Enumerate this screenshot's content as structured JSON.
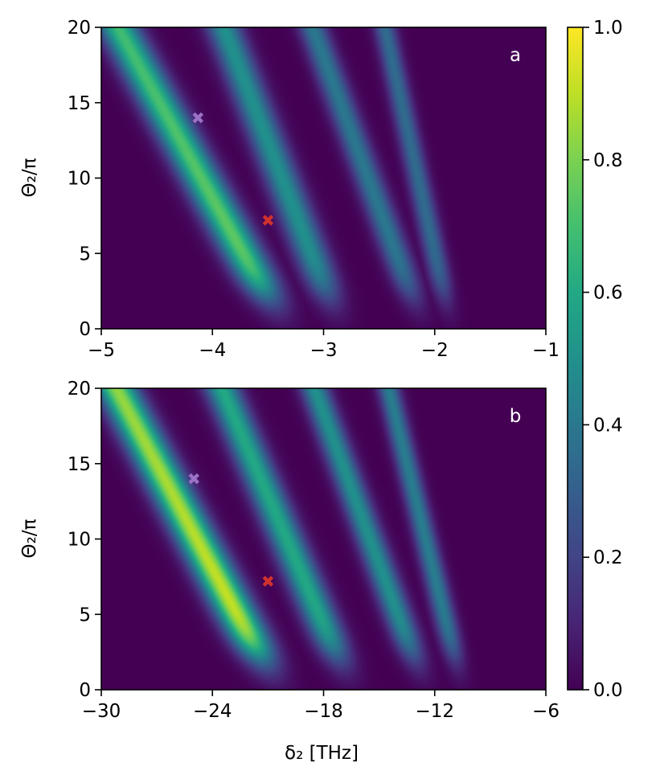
{
  "chart_data": [
    {
      "type": "heatmap",
      "panel_label": "a",
      "xlabel": "",
      "ylabel": "Θ₂/π",
      "xlim": [
        -5,
        -1
      ],
      "ylim": [
        0,
        20
      ],
      "xticks": [
        -5,
        -4,
        -3,
        -2,
        -1
      ],
      "yticks": [
        0,
        5,
        10,
        15,
        20
      ],
      "xtick_labels": [
        "−5",
        "−4",
        "−3",
        "−2",
        "−1"
      ],
      "ytick_labels": [
        "0",
        "5",
        "10",
        "15",
        "20"
      ],
      "peak_value": 0.78,
      "markers": [
        {
          "x": -4.13,
          "y": 14.0,
          "color": "#9b72c6",
          "symbol": "X"
        },
        {
          "x": -3.5,
          "y": 7.2,
          "color": "#d0322d",
          "symbol": "X"
        }
      ],
      "ridges": [
        {
          "x_at_top": -4.85,
          "x_at_bottom": -3.35,
          "peak": 0.78
        },
        {
          "x_at_top": -3.9,
          "x_at_bottom": -2.85,
          "peak": 0.5
        },
        {
          "x_at_top": -3.1,
          "x_at_bottom": -2.1,
          "peak": 0.4
        },
        {
          "x_at_top": -2.45,
          "x_at_bottom": -1.85,
          "peak": 0.35
        }
      ]
    },
    {
      "type": "heatmap",
      "panel_label": "b",
      "xlabel": "δ₂ [THz]",
      "ylabel": "Θ₂/π",
      "xlim": [
        -30,
        -6
      ],
      "ylim": [
        0,
        20
      ],
      "xticks": [
        -30,
        -24,
        -18,
        -12,
        -6
      ],
      "yticks": [
        0,
        5,
        10,
        15,
        20
      ],
      "xtick_labels": [
        "−30",
        "−24",
        "−18",
        "−12",
        "−6"
      ],
      "ytick_labels": [
        "0",
        "5",
        "10",
        "15",
        "20"
      ],
      "peak_value": 0.95,
      "markers": [
        {
          "x": -25.0,
          "y": 14.0,
          "color": "#9b72c6",
          "symbol": "X"
        },
        {
          "x": -21.0,
          "y": 7.2,
          "color": "#d0322d",
          "symbol": "X"
        }
      ],
      "ridges": [
        {
          "x_at_top": -29.2,
          "x_at_bottom": -20.5,
          "peak": 0.95
        },
        {
          "x_at_top": -23.5,
          "x_at_bottom": -16.5,
          "peak": 0.6
        },
        {
          "x_at_top": -18.5,
          "x_at_bottom": -12.5,
          "peak": 0.5
        },
        {
          "x_at_top": -14.5,
          "x_at_bottom": -10.5,
          "peak": 0.42
        }
      ]
    }
  ],
  "colorbar": {
    "colormap": "viridis",
    "range": [
      0.0,
      1.0
    ],
    "ticks": [
      0.0,
      0.2,
      0.4,
      0.6,
      0.8,
      1.0
    ],
    "tick_labels": [
      "0.0",
      "0.2",
      "0.4",
      "0.6",
      "0.8",
      "1.0"
    ]
  }
}
